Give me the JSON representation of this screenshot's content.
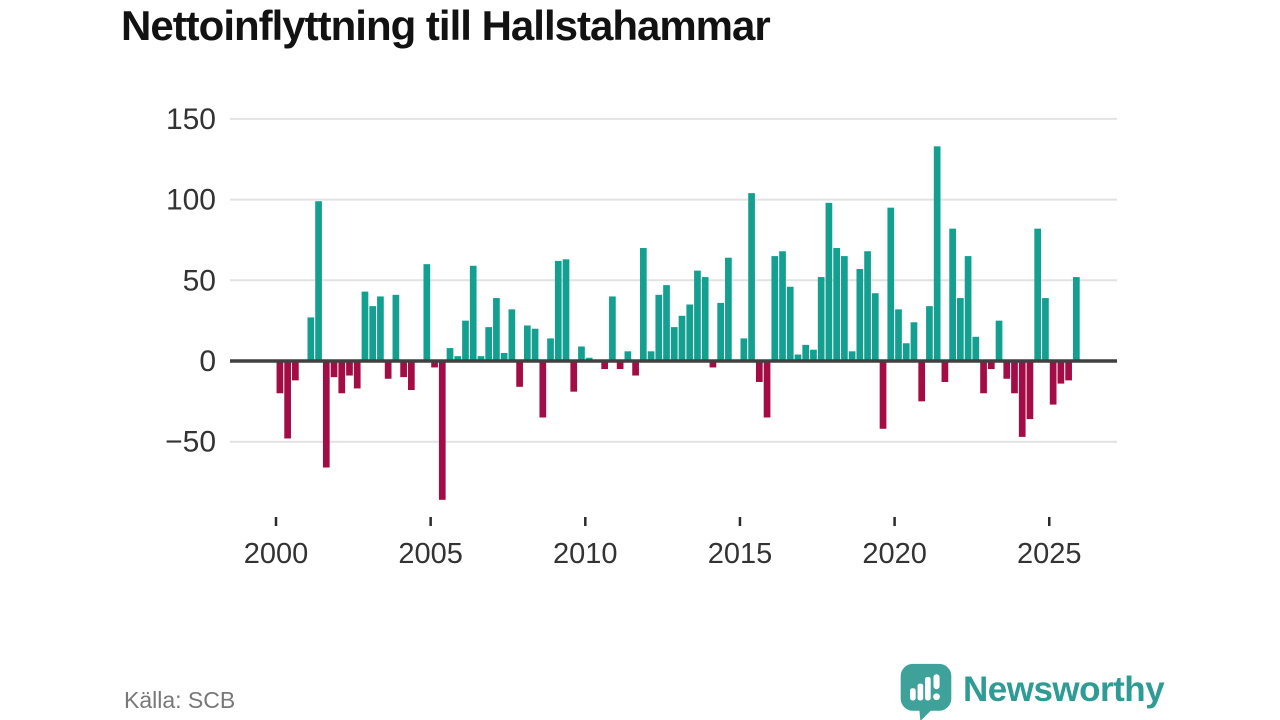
{
  "page": {
    "background": "#ffffff"
  },
  "header": {
    "title": "Nettoinflyttning till Hallstahammar"
  },
  "footer": {
    "source_label": "Källa: SCB",
    "brand_name": "Newsworthy"
  },
  "chart_data": {
    "type": "bar",
    "title": "Nettoinflyttning till Hallstahammar",
    "x_period": "quarterly",
    "x_start": "2000Q1",
    "x_end": "2025Q4",
    "values_by_year": [
      {
        "year": 2000,
        "q": [
          -20,
          -48,
          -12,
          0
        ]
      },
      {
        "year": 2001,
        "q": [
          27,
          99,
          -66,
          -10
        ]
      },
      {
        "year": 2002,
        "q": [
          -20,
          -9,
          -17,
          43
        ]
      },
      {
        "year": 2003,
        "q": [
          34,
          40,
          -11,
          41
        ]
      },
      {
        "year": 2004,
        "q": [
          -10,
          -18,
          0,
          60
        ]
      },
      {
        "year": 2005,
        "q": [
          -4,
          -86,
          8,
          3
        ]
      },
      {
        "year": 2006,
        "q": [
          25,
          59,
          3,
          21
        ]
      },
      {
        "year": 2007,
        "q": [
          39,
          5,
          32,
          -16
        ]
      },
      {
        "year": 2008,
        "q": [
          22,
          20,
          -35,
          14
        ]
      },
      {
        "year": 2009,
        "q": [
          62,
          63,
          -19,
          9
        ]
      },
      {
        "year": 2010,
        "q": [
          2,
          0,
          -5,
          40
        ]
      },
      {
        "year": 2011,
        "q": [
          -5,
          6,
          -9,
          70
        ]
      },
      {
        "year": 2012,
        "q": [
          6,
          41,
          47,
          21
        ]
      },
      {
        "year": 2013,
        "q": [
          28,
          35,
          56,
          52
        ]
      },
      {
        "year": 2014,
        "q": [
          -4,
          36,
          64,
          0
        ]
      },
      {
        "year": 2015,
        "q": [
          14,
          104,
          -13,
          -35
        ]
      },
      {
        "year": 2016,
        "q": [
          65,
          68,
          46,
          4
        ]
      },
      {
        "year": 2017,
        "q": [
          10,
          7,
          52,
          98
        ]
      },
      {
        "year": 2018,
        "q": [
          70,
          65,
          6,
          57
        ]
      },
      {
        "year": 2019,
        "q": [
          68,
          42,
          -42,
          95
        ]
      },
      {
        "year": 2020,
        "q": [
          32,
          11,
          24,
          -25
        ]
      },
      {
        "year": 2021,
        "q": [
          34,
          133,
          -13,
          82
        ]
      },
      {
        "year": 2022,
        "q": [
          39,
          65,
          15,
          -20
        ]
      },
      {
        "year": 2023,
        "q": [
          -5,
          25,
          -11,
          -20
        ]
      },
      {
        "year": 2024,
        "q": [
          -47,
          -36,
          82,
          39
        ]
      },
      {
        "year": 2025,
        "q": [
          -27,
          -14,
          -12,
          52
        ]
      }
    ],
    "xticks": [
      "2000",
      "2005",
      "2010",
      "2015",
      "2020",
      "2025"
    ],
    "yticks": [
      {
        "label": "150",
        "value": 150
      },
      {
        "label": "100",
        "value": 100
      },
      {
        "label": "50",
        "value": 50
      },
      {
        "label": "0",
        "value": 0
      },
      {
        "label": "−50",
        "value": -50
      }
    ],
    "ylim": [
      -95,
      155
    ],
    "grid": "horizontal",
    "legend": "none",
    "positive_color": "#14A091",
    "negative_color": "#A40C45",
    "gridline_color": "#e2e2e2",
    "zero_line_color": "#404040",
    "tick_color": "#2b2b2b",
    "tick_label_color": "#333333"
  }
}
